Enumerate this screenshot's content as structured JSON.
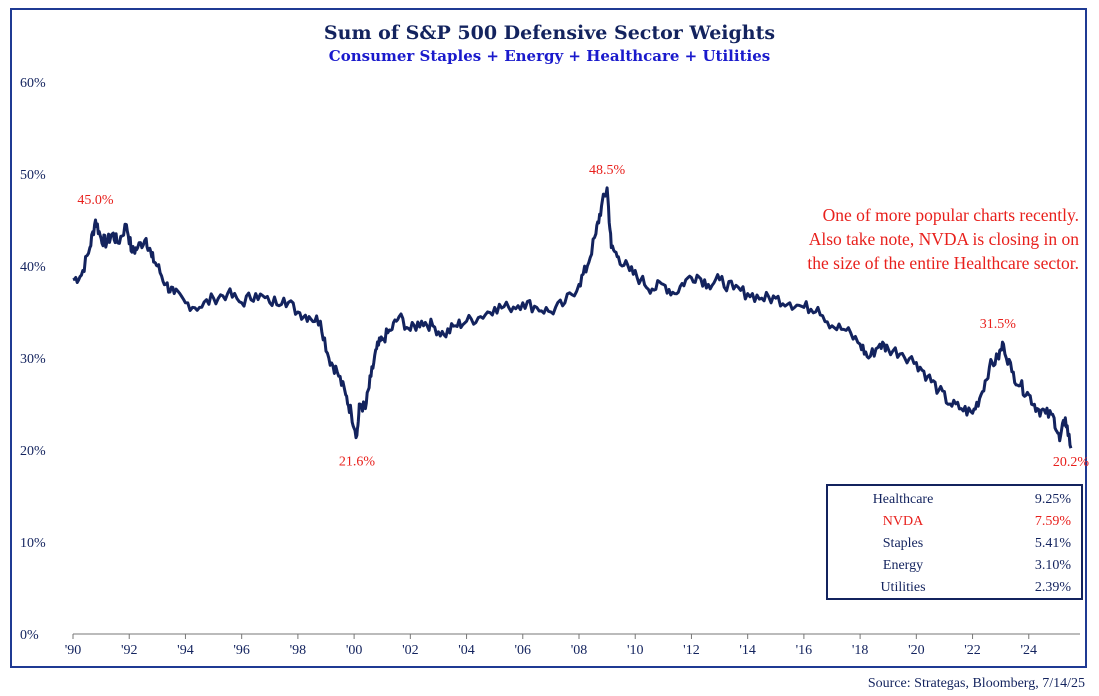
{
  "title": "Sum of S&P 500 Defensive Sector Weights",
  "subtitle": "Consumer Staples + Energy + Healthcare + Utilities",
  "annotation_lines": [
    "One of more popular charts recently.",
    "Also take note, NVDA is closing in on",
    "the size of the entire Healthcare sector."
  ],
  "weights_table": [
    {
      "name": "Healthcare",
      "value": "9.25%"
    },
    {
      "name": "NVDA",
      "value": "7.59%"
    },
    {
      "name": "Staples",
      "value": "5.41%"
    },
    {
      "name": "Energy",
      "value": "3.10%"
    },
    {
      "name": "Utilities",
      "value": "2.39%"
    }
  ],
  "source": "Source: Strategas, Bloomberg, 7/14/25",
  "colors": {
    "line": "#13235e",
    "title": "#13235e",
    "subtitle": "#1a1acc",
    "annotation": "#e8201c",
    "frame": "#1f3a93"
  },
  "chart_data": {
    "type": "line",
    "title": "Sum of S&P 500 Defensive Sector Weights",
    "subtitle": "Consumer Staples + Energy + Healthcare + Utilities",
    "xlabel": "",
    "ylabel": "",
    "xlim": [
      1990,
      2026
    ],
    "ylim": [
      0,
      60
    ],
    "grid": false,
    "x_ticks": [
      1990,
      1992,
      1994,
      1996,
      1998,
      2000,
      2002,
      2004,
      2006,
      2008,
      2010,
      2012,
      2014,
      2016,
      2018,
      2020,
      2022,
      2024
    ],
    "x_tick_labels": [
      "'90",
      "'92",
      "'94",
      "'96",
      "'98",
      "'00",
      "'02",
      "'04",
      "'06",
      "'08",
      "'10",
      "'12",
      "'14",
      "'16",
      "'18",
      "'20",
      "'22",
      "'24"
    ],
    "y_ticks": [
      0,
      10,
      20,
      30,
      40,
      50,
      60
    ],
    "y_tick_labels": [
      "0%",
      "10%",
      "20%",
      "30%",
      "40%",
      "50%",
      "60%"
    ],
    "series": [
      {
        "x": [
          1990.0,
          1990.3,
          1990.6,
          1990.8,
          1991.0,
          1991.2,
          1991.4,
          1991.6,
          1991.9,
          1992.1,
          1992.3,
          1992.6,
          1992.8,
          1993.0,
          1993.3,
          1993.6,
          1994.0,
          1994.5,
          1995.0,
          1995.5,
          1996.0,
          1996.5,
          1997.0,
          1997.5,
          1998.0,
          1998.4,
          1998.8,
          1999.1,
          1999.4,
          1999.7,
          1999.9,
          2000.1,
          2000.2,
          2000.4,
          2000.6,
          2000.8,
          2001.0,
          2001.3,
          2001.6,
          2002.0,
          2002.4,
          2002.8,
          2003.2,
          2003.6,
          2004.0,
          2004.5,
          2005.0,
          2005.5,
          2006.0,
          2006.5,
          2007.0,
          2007.5,
          2008.0,
          2008.3,
          2008.6,
          2008.8,
          2009.0,
          2009.15,
          2009.4,
          2009.8,
          2010.2,
          2010.6,
          2011.0,
          2011.4,
          2011.8,
          2012.2,
          2012.6,
          2013.0,
          2013.5,
          2014.0,
          2014.5,
          2015.0,
          2015.5,
          2016.0,
          2016.5,
          2017.0,
          2017.5,
          2018.0,
          2018.3,
          2018.7,
          2019.0,
          2019.5,
          2020.0,
          2020.4,
          2020.8,
          2021.2,
          2021.6,
          2022.0,
          2022.3,
          2022.6,
          2022.9,
          2023.1,
          2023.4,
          2023.7,
          2024.0,
          2024.3,
          2024.6,
          2024.9,
          2025.1,
          2025.3,
          2025.5
        ],
        "y": [
          38.5,
          39.0,
          42.0,
          45.0,
          43.0,
          42.5,
          43.5,
          42.5,
          44.5,
          41.5,
          42.0,
          43.0,
          41.0,
          40.0,
          38.0,
          37.0,
          36.0,
          35.5,
          36.5,
          37.0,
          36.0,
          37.0,
          36.0,
          36.5,
          35.0,
          34.5,
          34.0,
          30.0,
          28.5,
          26.0,
          24.0,
          21.6,
          25.0,
          24.5,
          28.0,
          31.0,
          32.0,
          33.0,
          34.5,
          33.0,
          34.0,
          33.5,
          32.5,
          33.5,
          34.0,
          34.5,
          35.5,
          35.5,
          36.0,
          35.5,
          35.0,
          36.0,
          38.0,
          40.0,
          43.5,
          46.5,
          48.5,
          42.0,
          41.0,
          39.5,
          38.5,
          37.5,
          38.0,
          37.0,
          38.5,
          39.0,
          38.0,
          38.5,
          37.5,
          37.0,
          36.5,
          36.5,
          36.0,
          35.5,
          35.5,
          33.5,
          33.0,
          31.5,
          30.0,
          31.5,
          31.0,
          30.5,
          29.5,
          28.0,
          26.5,
          25.0,
          24.5,
          24.0,
          26.0,
          29.0,
          30.0,
          31.5,
          28.5,
          27.0,
          26.0,
          24.5,
          24.0,
          23.5,
          21.0,
          23.5,
          20.2
        ]
      }
    ],
    "annotations": [
      {
        "x": 1990.8,
        "y": 45.0,
        "text": "45.0%"
      },
      {
        "x": 2000.1,
        "y": 21.6,
        "text": "21.6%"
      },
      {
        "x": 2009.0,
        "y": 48.5,
        "text": "48.5%"
      },
      {
        "x": 2022.9,
        "y": 31.5,
        "text": "31.5%"
      },
      {
        "x": 2025.5,
        "y": 20.2,
        "text": "20.2%"
      }
    ]
  }
}
